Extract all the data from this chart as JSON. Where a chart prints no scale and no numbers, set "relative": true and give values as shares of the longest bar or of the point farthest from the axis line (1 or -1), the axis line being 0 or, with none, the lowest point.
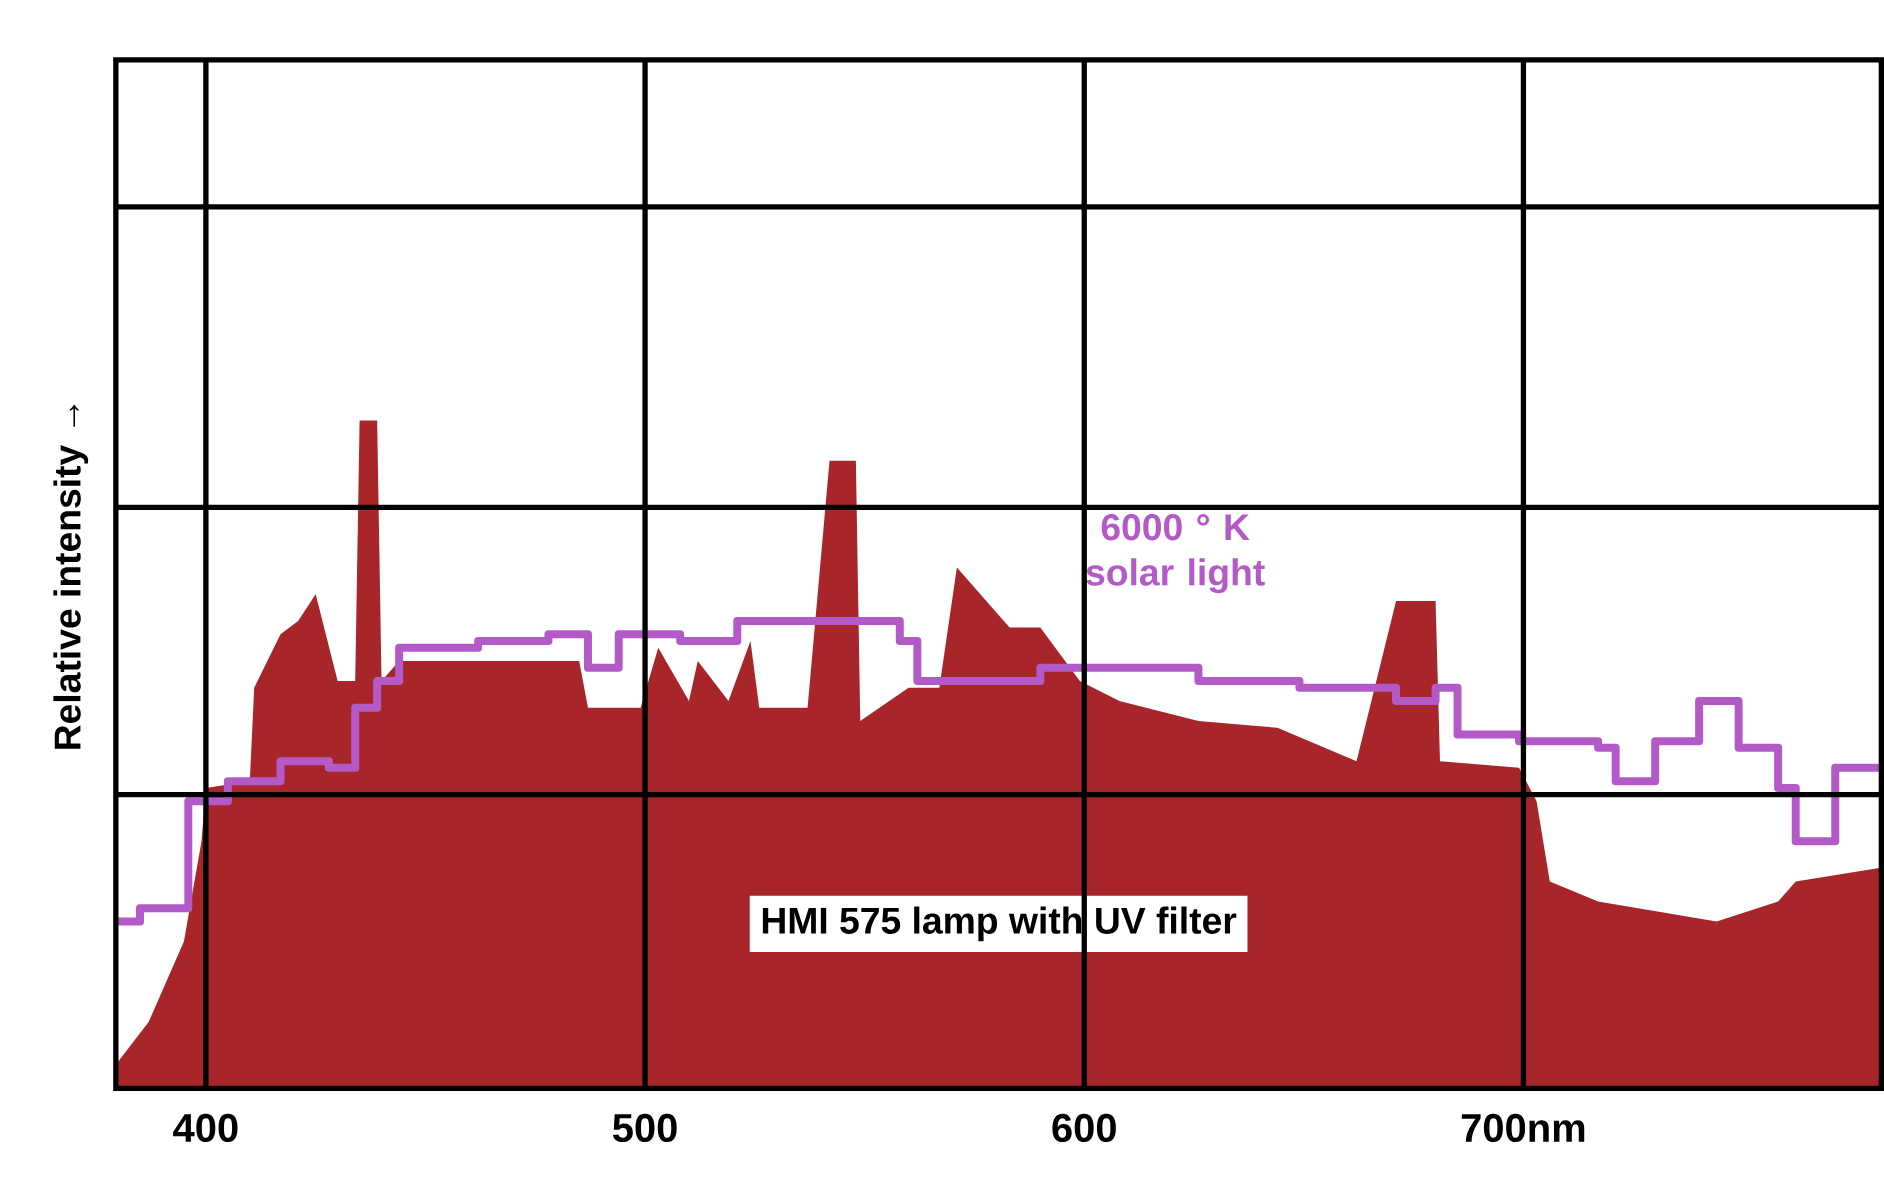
{
  "chart_data": {
    "type": "area",
    "ylabel": "Relative intensity →",
    "relative": true,
    "grid": true,
    "xlim": [
      379.5,
      781.5
    ],
    "xticks": [
      400,
      500,
      600,
      {
        "value": 700,
        "label": "700nm"
      }
    ],
    "series": [
      {
        "name": "HMI 575 lamp with UV filter",
        "color": "#a8262a",
        "x": [
          380,
          387,
          395,
          399,
          400,
          410,
          411,
          417,
          421,
          425,
          430,
          434,
          435,
          439,
          440,
          444,
          485,
          487,
          499,
          503,
          510,
          512,
          519,
          524,
          526,
          537,
          542,
          548,
          549,
          560,
          567,
          571,
          583,
          590,
          599,
          608,
          626,
          644,
          662,
          671,
          680,
          681,
          699,
          703,
          706,
          717,
          744,
          758,
          762,
          781
        ],
        "values": [
          0.04,
          0.1,
          0.22,
          0.37,
          0.45,
          0.46,
          0.6,
          0.68,
          0.7,
          0.74,
          0.61,
          0.61,
          1.0,
          1.0,
          0.61,
          0.64,
          0.64,
          0.57,
          0.57,
          0.66,
          0.58,
          0.64,
          0.58,
          0.67,
          0.57,
          0.57,
          0.94,
          0.94,
          0.55,
          0.6,
          0.6,
          0.78,
          0.69,
          0.69,
          0.61,
          0.58,
          0.55,
          0.54,
          0.49,
          0.73,
          0.73,
          0.49,
          0.48,
          0.43,
          0.31,
          0.28,
          0.25,
          0.28,
          0.31,
          0.33
        ]
      },
      {
        "name": "6000 ° K solar light",
        "type": "step",
        "color": "#b45ac8",
        "x": [
          380,
          385,
          396,
          405,
          417,
          428,
          434,
          439,
          444,
          462,
          478,
          487,
          494,
          508,
          521,
          544,
          558,
          562,
          590,
          626,
          649,
          671,
          680,
          685,
          699,
          717,
          721,
          730,
          740,
          749,
          758,
          762,
          769,
          771,
          781
        ],
        "values": [
          0.25,
          0.27,
          0.43,
          0.46,
          0.49,
          0.48,
          0.57,
          0.61,
          0.66,
          0.67,
          0.68,
          0.63,
          0.68,
          0.67,
          0.7,
          0.7,
          0.67,
          0.61,
          0.63,
          0.61,
          0.6,
          0.58,
          0.6,
          0.53,
          0.52,
          0.51,
          0.46,
          0.52,
          0.58,
          0.51,
          0.45,
          0.37,
          0.37,
          0.48,
          0.48
        ]
      }
    ]
  }
}
